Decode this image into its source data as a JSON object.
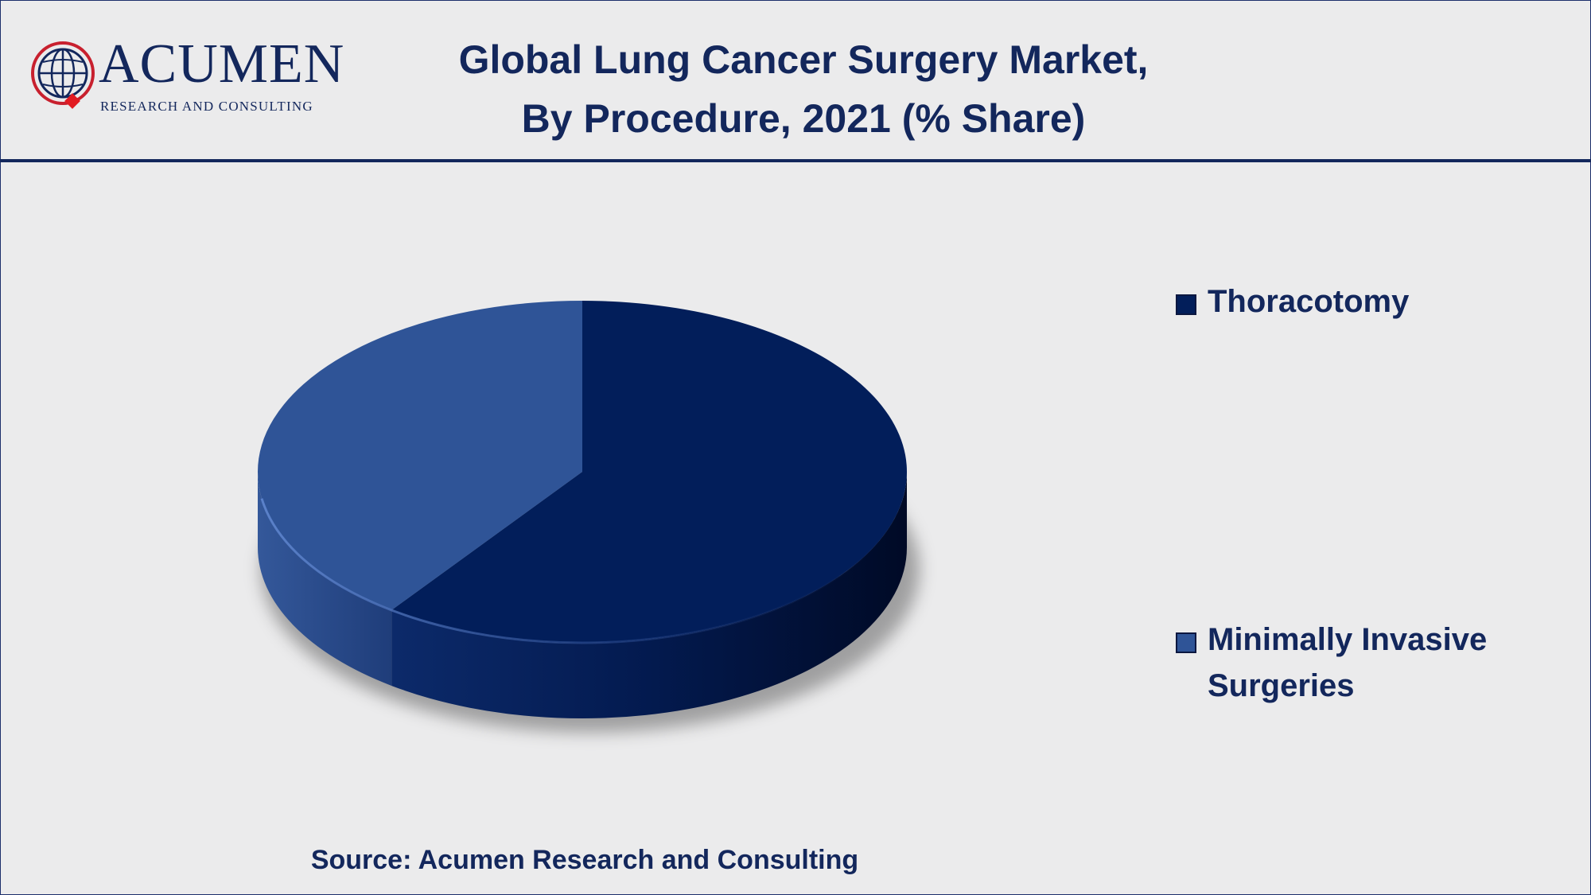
{
  "brand": {
    "name": "ACUMEN",
    "tagline": "RESEARCH AND CONSULTING"
  },
  "title_lines": [
    "Global Lung Cancer Surgery Market,",
    "By Procedure, 2021 (% Share)"
  ],
  "source": "Source: Acumen Research and Consulting",
  "colors": {
    "thoracotomy": "#021e5a",
    "minimally_invasive": "#2f5497",
    "text": "#13275c",
    "background": "#ebebec"
  },
  "chart_data": {
    "type": "pie",
    "title": "Global Lung Cancer Surgery Market, By Procedure, 2021 (% Share)",
    "style": "3d",
    "legend": "right",
    "slices": [
      {
        "label": "Thoracotomy",
        "value": 60,
        "color": "#021e5a"
      },
      {
        "label": "Minimally Invasive Surgeries",
        "value": 40,
        "color": "#2f5497"
      }
    ]
  },
  "legend_items": [
    {
      "label_lines": [
        "Thoracotomy"
      ]
    },
    {
      "label_lines": [
        "Minimally Invasive",
        "Surgeries"
      ]
    }
  ]
}
